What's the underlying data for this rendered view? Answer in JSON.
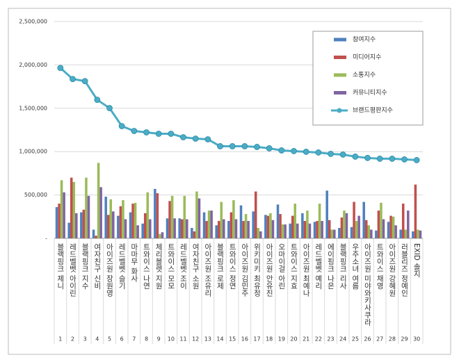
{
  "chart_data": {
    "type": "bar",
    "categories": [
      "블랙핑크 제니",
      "레드벨벳 아이린",
      "블랙핑크 지수",
      "여자친구 신비",
      "아이즈원 장원영",
      "레드벨벳 슬기",
      "마마무 화사",
      "트와이스 나연",
      "체리블렛 지원",
      "트와이스 모모",
      "레드벨벳 조이",
      "여자친구 소원",
      "아이즈원 조유리",
      "블랙핑크 로제",
      "트와이스 정연",
      "아이즈원 김민주",
      "위키미키 최유정",
      "아이즈원 안유진",
      "오마이걸 아린",
      "트와이스 지효",
      "아이즈원 최예나",
      "레드벨벳 예리",
      "에이핑크 나은",
      "블랙핑크 리사",
      "우주소녀 여름",
      "아이즈원 미야와키사쿠라",
      "트와이스 채영",
      "아이즈원 강혜원",
      "러블리즈 정예인",
      "EXID 솔지"
    ],
    "ranks": [
      1,
      2,
      3,
      4,
      5,
      6,
      7,
      8,
      9,
      10,
      11,
      12,
      13,
      14,
      15,
      16,
      17,
      18,
      19,
      20,
      21,
      22,
      23,
      24,
      25,
      26,
      27,
      28,
      29,
      30
    ],
    "series": [
      {
        "name": "참여지수",
        "color": "#4f81bd",
        "values": [
          360000,
          180000,
          300000,
          100000,
          480000,
          260000,
          300000,
          170000,
          570000,
          230000,
          230000,
          120000,
          300000,
          150000,
          200000,
          380000,
          310000,
          270000,
          390000,
          170000,
          290000,
          190000,
          550000,
          120000,
          130000,
          420000,
          90000,
          190000,
          100000,
          80000
        ]
      },
      {
        "name": "미디어지수",
        "color": "#c0504d",
        "values": [
          400000,
          700000,
          330000,
          30000,
          270000,
          370000,
          400000,
          290000,
          520000,
          430000,
          220000,
          80000,
          200000,
          200000,
          300000,
          200000,
          540000,
          260000,
          280000,
          260000,
          200000,
          200000,
          210000,
          240000,
          420000,
          210000,
          320000,
          260000,
          400000,
          620000
        ]
      },
      {
        "name": "소통지수",
        "color": "#9bbb59",
        "values": [
          670000,
          650000,
          700000,
          870000,
          450000,
          440000,
          410000,
          530000,
          50000,
          490000,
          490000,
          540000,
          320000,
          420000,
          440000,
          280000,
          120000,
          290000,
          160000,
          400000,
          320000,
          400000,
          100000,
          320000,
          200000,
          150000,
          410000,
          250000,
          100000,
          100000
        ]
      },
      {
        "name": "커뮤니티지수",
        "color": "#8064a2",
        "values": [
          530000,
          290000,
          490000,
          590000,
          310000,
          220000,
          150000,
          220000,
          70000,
          230000,
          220000,
          460000,
          320000,
          220000,
          220000,
          200000,
          80000,
          210000,
          160000,
          170000,
          170000,
          200000,
          100000,
          290000,
          260000,
          100000,
          220000,
          150000,
          320000,
          90000
        ]
      },
      {
        "name": "브랜드평판지수",
        "color": "#4bacc6",
        "style": "line",
        "values": [
          1965000,
          1837000,
          1813000,
          1597000,
          1502000,
          1294000,
          1238000,
          1222000,
          1206000,
          1206000,
          1166000,
          1150000,
          1142000,
          1062000,
          1062000,
          1062000,
          1054000,
          1038000,
          1014000,
          1006000,
          998000,
          990000,
          974000,
          966000,
          942000,
          927000,
          918000,
          918000,
          910000,
          902000
        ]
      }
    ],
    "ylim": [
      0,
      2500000
    ],
    "yticks": [
      {
        "value": 0,
        "label": "-"
      },
      {
        "value": 500000,
        "label": "500,000"
      },
      {
        "value": 1000000,
        "label": "1,000,000"
      },
      {
        "value": 1500000,
        "label": "1,500,000"
      },
      {
        "value": 2000000,
        "label": "2,000,000"
      },
      {
        "value": 2500000,
        "label": "2,500,000"
      }
    ],
    "grid": true,
    "legend": "upper-right"
  }
}
